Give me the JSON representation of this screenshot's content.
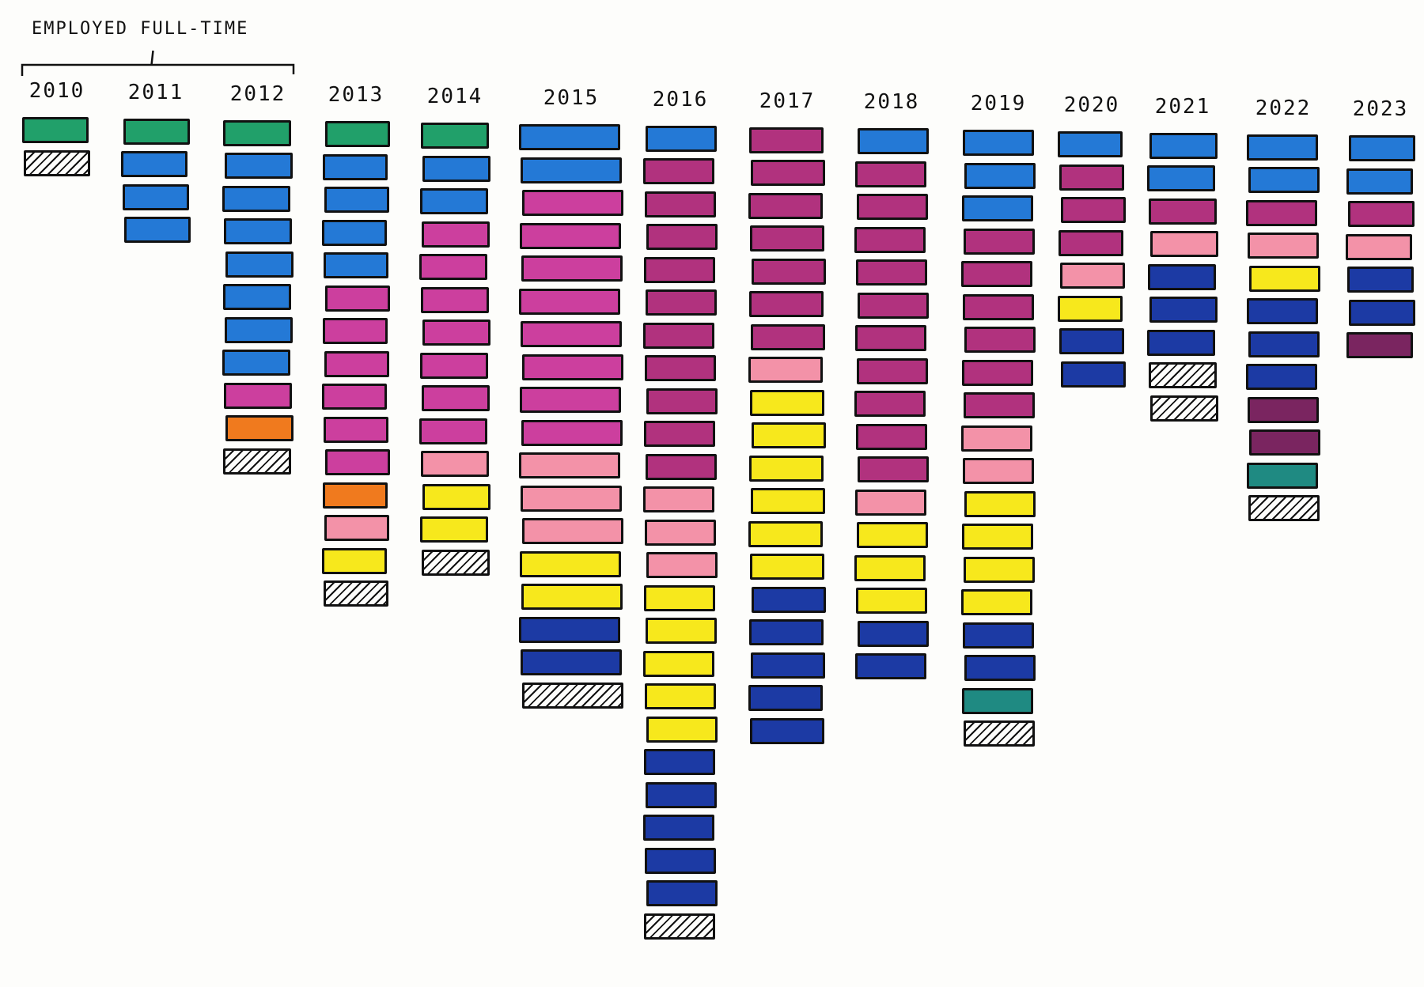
{
  "header": {
    "label": "EMPLOYED FULL-TIME",
    "bracket_span": [
      "2010",
      "2012"
    ]
  },
  "colors": {
    "green": "#21a06a",
    "blue": "#2479d6",
    "magenta": "#cc3f9e",
    "berry": "#b1327e",
    "orange": "#f07a1e",
    "pink": "#f392a8",
    "yellow": "#f7e81c",
    "navy": "#1c3aa4",
    "plum": "#7a2560",
    "teal": "#1f8a82",
    "hatched": "hatched"
  },
  "chart_data": {
    "type": "stacked-blocks",
    "columns": [
      {
        "year": "2010",
        "blocks": [
          "green",
          "hatched"
        ]
      },
      {
        "year": "2011",
        "blocks": [
          "green",
          "blue",
          "blue",
          "blue"
        ]
      },
      {
        "year": "2012",
        "blocks": [
          "green",
          "blue",
          "blue",
          "blue",
          "blue",
          "blue",
          "blue",
          "blue",
          "magenta",
          "orange",
          "hatched"
        ]
      },
      {
        "year": "2013",
        "blocks": [
          "green",
          "blue",
          "blue",
          "blue",
          "blue",
          "magenta",
          "magenta",
          "magenta",
          "magenta",
          "magenta",
          "magenta",
          "orange",
          "pink",
          "yellow",
          "hatched"
        ]
      },
      {
        "year": "2014",
        "blocks": [
          "green",
          "blue",
          "blue",
          "magenta",
          "magenta",
          "magenta",
          "magenta",
          "magenta",
          "magenta",
          "magenta",
          "pink",
          "yellow",
          "yellow",
          "hatched"
        ]
      },
      {
        "year": "2015",
        "blocks": [
          "blue",
          "blue",
          "magenta",
          "magenta",
          "magenta",
          "magenta",
          "magenta",
          "magenta",
          "magenta",
          "magenta",
          "pink",
          "pink",
          "pink",
          "yellow",
          "yellow",
          "navy",
          "navy",
          "hatched"
        ]
      },
      {
        "year": "2016",
        "blocks": [
          "blue",
          "berry",
          "berry",
          "berry",
          "berry",
          "berry",
          "berry",
          "berry",
          "berry",
          "berry",
          "berry",
          "pink",
          "pink",
          "pink",
          "yellow",
          "yellow",
          "yellow",
          "yellow",
          "yellow",
          "navy",
          "navy",
          "navy",
          "navy",
          "navy",
          "hatched"
        ]
      },
      {
        "year": "2017",
        "blocks": [
          "berry",
          "berry",
          "berry",
          "berry",
          "berry",
          "berry",
          "berry",
          "pink",
          "yellow",
          "yellow",
          "yellow",
          "yellow",
          "yellow",
          "yellow",
          "navy",
          "navy",
          "navy",
          "navy",
          "navy"
        ]
      },
      {
        "year": "2018",
        "blocks": [
          "blue",
          "berry",
          "berry",
          "berry",
          "berry",
          "berry",
          "berry",
          "berry",
          "berry",
          "berry",
          "berry",
          "pink",
          "yellow",
          "yellow",
          "yellow",
          "navy",
          "navy"
        ]
      },
      {
        "year": "2019",
        "blocks": [
          "blue",
          "blue",
          "blue",
          "berry",
          "berry",
          "berry",
          "berry",
          "berry",
          "berry",
          "pink",
          "pink",
          "yellow",
          "yellow",
          "yellow",
          "yellow",
          "navy",
          "navy",
          "teal",
          "hatched"
        ]
      },
      {
        "year": "2020",
        "blocks": [
          "blue",
          "berry",
          "berry",
          "berry",
          "pink",
          "yellow",
          "navy",
          "navy"
        ]
      },
      {
        "year": "2021",
        "blocks": [
          "blue",
          "blue",
          "berry",
          "pink",
          "navy",
          "navy",
          "navy",
          "hatched",
          "hatched"
        ]
      },
      {
        "year": "2022",
        "blocks": [
          "blue",
          "blue",
          "berry",
          "pink",
          "yellow",
          "navy",
          "navy",
          "navy",
          "plum",
          "plum",
          "teal",
          "hatched"
        ]
      },
      {
        "year": "2023",
        "blocks": [
          "blue",
          "blue",
          "berry",
          "pink",
          "navy",
          "navy",
          "plum"
        ]
      }
    ]
  }
}
